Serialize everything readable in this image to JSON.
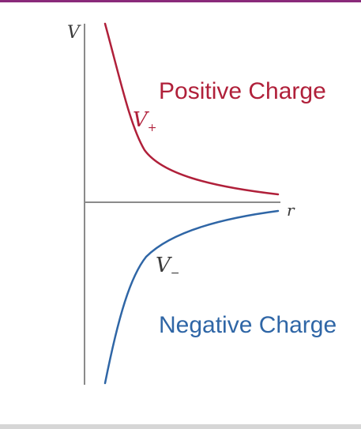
{
  "colors": {
    "positive": "#b0203a",
    "negative": "#2f66a6",
    "axis": "#8a8a8a",
    "text_dark": "#3a3a3a",
    "top_border": "#8a2a7a",
    "bottom_border": "#d6d6d6"
  },
  "axes": {
    "y_label": "V",
    "x_label": "r"
  },
  "positive": {
    "symbol": "V",
    "sub": "+",
    "caption": "Positive Charge"
  },
  "negative": {
    "symbol": "V",
    "sub": "−",
    "caption": "Negative Charge"
  }
}
